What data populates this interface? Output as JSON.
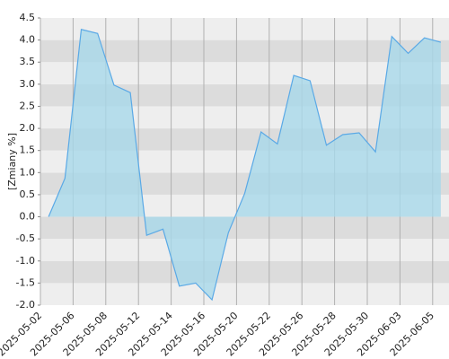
{
  "chart_data": {
    "type": "area",
    "y_label": "[Zmiany %]",
    "categories": [
      "2025-05-02",
      null,
      "2025-05-06",
      null,
      "2025-05-08",
      null,
      "2025-05-12",
      null,
      "2025-05-14",
      null,
      "2025-05-16",
      null,
      "2025-05-20",
      null,
      "2025-05-22",
      null,
      "2025-05-26",
      null,
      "2025-05-28",
      null,
      "2025-05-30",
      null,
      "2025-06-03",
      null,
      "2025-06-05"
    ],
    "values": [
      0.0,
      0.87,
      4.24,
      4.15,
      2.98,
      2.81,
      -0.42,
      -0.28,
      -1.57,
      -1.5,
      -1.88,
      -0.36,
      0.53,
      1.92,
      1.65,
      3.2,
      3.08,
      1.62,
      1.86,
      1.9,
      1.47,
      4.08,
      3.7,
      4.05,
      3.95
    ],
    "color": "#5aa9e6",
    "fill": "#a8d8ea",
    "ylim": [
      -2.0,
      4.5
    ],
    "yticks": [
      {
        "value": -2.0,
        "label": "-2.0"
      },
      -1.5,
      {
        "value": -1.0,
        "label": "-1.0"
      },
      -0.5,
      {
        "value": 0.0,
        "label": "0.0"
      },
      0.5,
      {
        "value": 1.0,
        "label": "1.0"
      },
      1.5,
      {
        "value": 2.0,
        "label": "2.0"
      },
      2.5,
      {
        "value": 3.0,
        "label": "3.0"
      },
      3.5,
      {
        "value": 4.0,
        "label": "4.0"
      },
      4.5
    ],
    "grid": true
  }
}
